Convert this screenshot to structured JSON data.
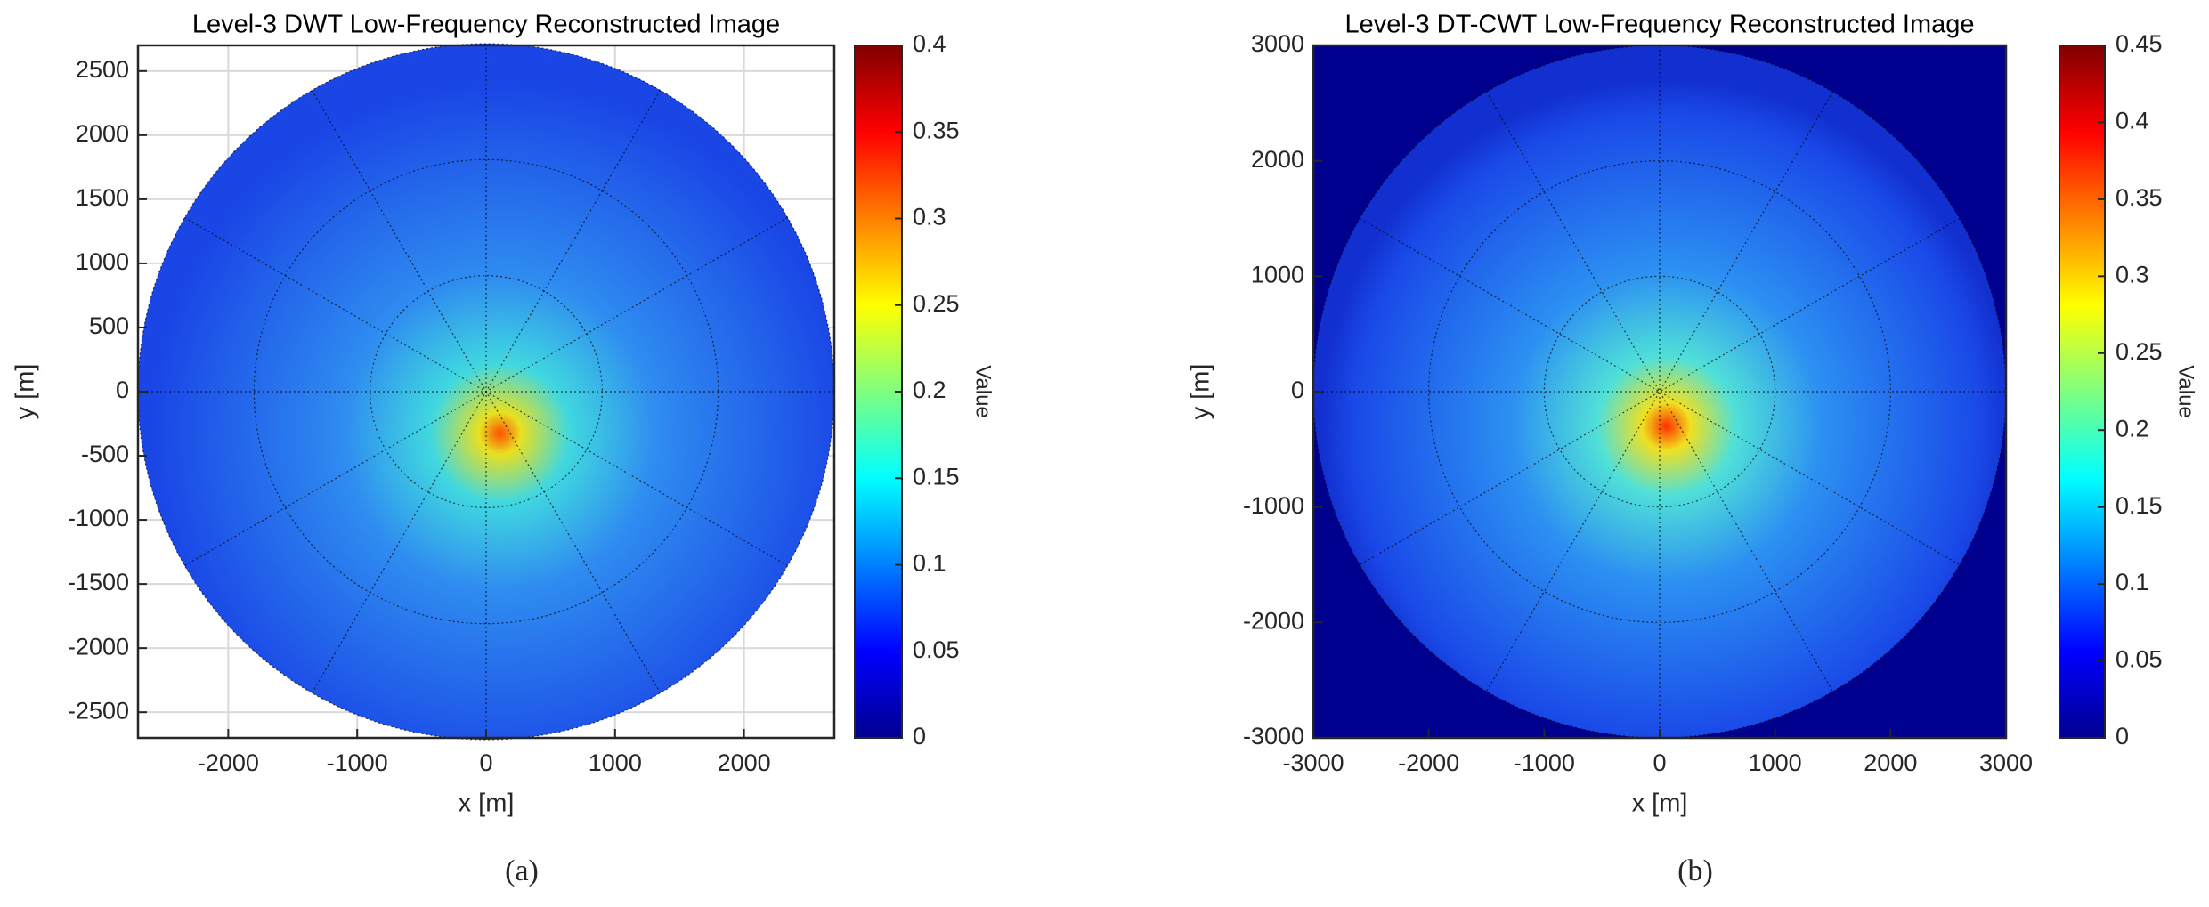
{
  "chart_data": [
    {
      "type": "heatmap",
      "title": "Level-3 DWT Low-Frequency Reconstructed Image",
      "x_label": "x [m]",
      "y_label": "y [m]",
      "xlim": [
        -2700,
        2700
      ],
      "ylim": [
        -2700,
        2700
      ],
      "xticks": [
        -2000,
        -1000,
        0,
        1000,
        2000
      ],
      "yticks": [
        -2500,
        -2000,
        -1500,
        -1000,
        -500,
        0,
        500,
        1000,
        1500,
        2000,
        2500
      ],
      "grid": true,
      "background": "#ffffff",
      "colormap": "jet",
      "colorbar": {
        "label": "Value",
        "lim": [
          0,
          0.4
        ],
        "ticks": [
          0,
          0.05,
          0.1,
          0.15,
          0.2,
          0.25,
          0.3,
          0.35,
          0.4
        ]
      },
      "caption": "(a)"
    },
    {
      "type": "heatmap",
      "title": "Level-3 DT-CWT Low-Frequency Reconstructed Image",
      "x_label": "x [m]",
      "y_label": "y [m]",
      "xlim": [
        -3000,
        3000
      ],
      "ylim": [
        -3000,
        3000
      ],
      "xticks": [
        -3000,
        -2000,
        -1000,
        0,
        1000,
        2000,
        3000
      ],
      "yticks": [
        -3000,
        -2000,
        -1000,
        0,
        1000,
        2000,
        3000
      ],
      "grid": false,
      "background": "#00008f",
      "colormap": "jet",
      "colorbar": {
        "label": "Value",
        "lim": [
          0,
          0.45
        ],
        "ticks": [
          0,
          0.05,
          0.1,
          0.15,
          0.2,
          0.25,
          0.3,
          0.35,
          0.4,
          0.45
        ]
      },
      "caption": "(b)"
    }
  ]
}
